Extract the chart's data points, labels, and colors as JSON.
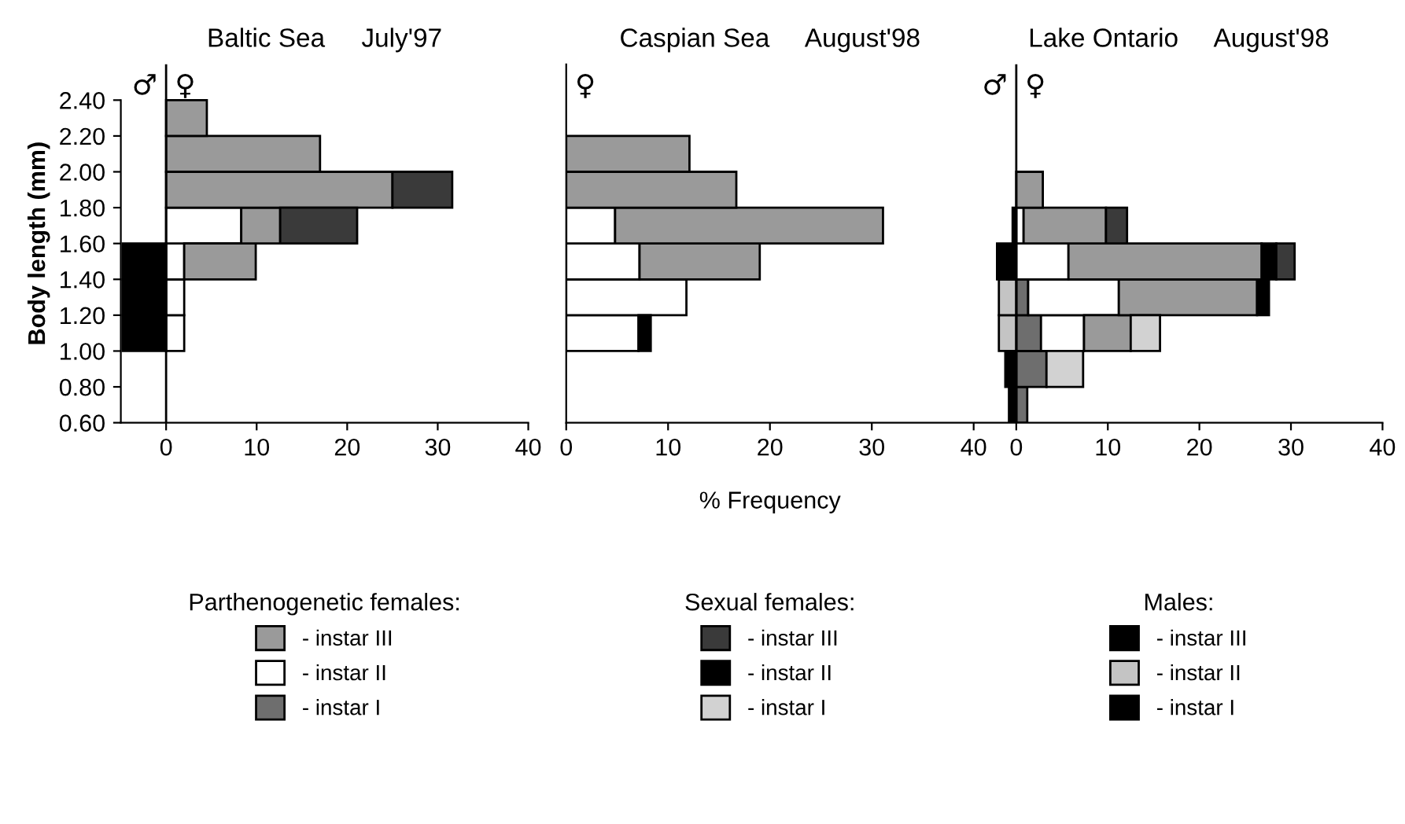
{
  "chart_data": [
    {
      "type": "bar",
      "orientation": "horizontal",
      "stacked": true,
      "title": "Baltic Sea     July'97",
      "ylabel": "Body length (mm)",
      "legend": "bottom",
      "legend_title": "Parthenogenetic females:",
      "x": [
        1.1,
        1.3,
        1.5,
        1.7,
        1.9,
        2.1,
        2.3
      ],
      "xlim": [
        -5,
        40
      ],
      "xticks": [
        0,
        10,
        20,
        30,
        40
      ],
      "ylim": [
        0.6,
        2.6
      ],
      "yticks": [
        {
          "value": 0.6,
          "label": "0.60"
        },
        {
          "value": 0.8,
          "label": "0.80"
        },
        {
          "value": 1.0,
          "label": "1.00"
        },
        {
          "value": 1.2,
          "label": "1.20"
        },
        {
          "value": 1.4,
          "label": "1.40"
        },
        {
          "value": 1.6,
          "label": "1.60"
        },
        {
          "value": 1.8,
          "label": "1.80"
        },
        {
          "value": 2.0,
          "label": "2.00"
        },
        {
          "value": 2.2,
          "label": "2.20"
        },
        {
          "value": 2.4,
          "label": "2.40"
        }
      ],
      "ref_lines": [
        {
          "axis": "x",
          "value": 0,
          "color": "#000000"
        }
      ],
      "annotations": [
        "♂",
        "♀"
      ],
      "series": [
        {
          "name": "- instar I",
          "color": "#6e6e6e",
          "values": [
            null,
            null,
            null,
            null,
            null,
            null,
            null
          ]
        },
        {
          "name": "- instar II",
          "color": "#ffffff",
          "values": [
            2,
            2,
            2,
            8.3,
            null,
            null,
            null
          ]
        },
        {
          "name": "- instar III",
          "color": "#9a9a9a",
          "values": [
            null,
            null,
            7.9,
            4.3,
            25,
            17,
            4.5
          ]
        },
        {
          "color": "#3a3a3a",
          "values": [
            null,
            null,
            null,
            8.5,
            6.6,
            null,
            null
          ]
        },
        {
          "color": "#000000",
          "values": [
            -4.8,
            -4.8,
            -4.8,
            null,
            null,
            null,
            null
          ]
        }
      ]
    },
    {
      "type": "bar",
      "orientation": "horizontal",
      "stacked": true,
      "title": "Caspian Sea     August'98",
      "xlabel": "% Frequency",
      "legend": "bottom",
      "legend_title": "Sexual females:",
      "tick_labels": "x",
      "x": [
        1.1,
        1.3,
        1.5,
        1.7,
        1.9,
        2.1
      ],
      "xlim": [
        0,
        40
      ],
      "xticks": [
        0,
        10,
        20,
        30,
        40
      ],
      "ylim": [
        0.6,
        2.6
      ],
      "annotations": [
        "♀"
      ],
      "series": [
        {
          "color": "#ffffff",
          "values": [
            7.1,
            11.8,
            7.2,
            4.8,
            null,
            null
          ]
        },
        {
          "color": "#9a9a9a",
          "values": [
            null,
            null,
            11.8,
            26.3,
            16.7,
            12.1
          ]
        },
        {
          "name": "- instar I",
          "color": "#d2d2d2",
          "values": [
            null,
            null,
            null,
            null,
            null,
            null
          ]
        },
        {
          "name": "- instar II",
          "color": "#000000",
          "values": [
            1.2,
            null,
            null,
            null,
            null,
            null
          ]
        },
        {
          "name": "- instar III",
          "color": "#3a3a3a",
          "values": [
            null,
            null,
            null,
            null,
            null,
            null
          ]
        }
      ]
    },
    {
      "type": "bar",
      "orientation": "horizontal",
      "stacked": true,
      "title": "Lake Ontario     August'98",
      "legend": "bottom",
      "legend_title": "Males:",
      "tick_labels": "x",
      "x": [
        0.7,
        0.9,
        1.1,
        1.3,
        1.5,
        1.7,
        1.9
      ],
      "xlim": [
        -4.5,
        40
      ],
      "xticks": [
        0,
        10,
        20,
        30,
        40
      ],
      "ylim": [
        0.6,
        2.6
      ],
      "ref_lines": [
        {
          "axis": "x",
          "value": 0,
          "color": "#000000"
        }
      ],
      "annotations": [
        "♂",
        "♀"
      ],
      "series": [
        {
          "color": "#6e6e6e",
          "values": [
            1.2,
            3.3,
            2.7,
            1.3,
            null,
            null,
            null
          ]
        },
        {
          "color": "#ffffff",
          "values": [
            null,
            null,
            4.7,
            9.9,
            5.7,
            0.8,
            null
          ]
        },
        {
          "color": "#9a9a9a",
          "values": [
            null,
            null,
            5.1,
            15.1,
            21.1,
            9.0,
            2.9
          ]
        },
        {
          "color": "#d2d2d2",
          "values": [
            null,
            4,
            3.2,
            null,
            null,
            null,
            null
          ]
        },
        {
          "color": "#000000",
          "values": [
            null,
            null,
            null,
            1.3,
            1.6,
            null,
            null
          ]
        },
        {
          "color": "#3a3a3a",
          "values": [
            null,
            null,
            null,
            null,
            2,
            2.3,
            null
          ]
        },
        {
          "name": "- instar I",
          "color": "#000000",
          "values": [
            -0.8,
            -1.2,
            null,
            null,
            null,
            null,
            null
          ]
        },
        {
          "name": "- instar II",
          "color": "#c4c4c4",
          "values": [
            null,
            null,
            -1.9,
            -1.9,
            null,
            null,
            null
          ]
        },
        {
          "name": "- instar III",
          "color": "#000000",
          "values": [
            null,
            null,
            null,
            null,
            -2.1,
            -0.4,
            null
          ]
        }
      ]
    }
  ]
}
